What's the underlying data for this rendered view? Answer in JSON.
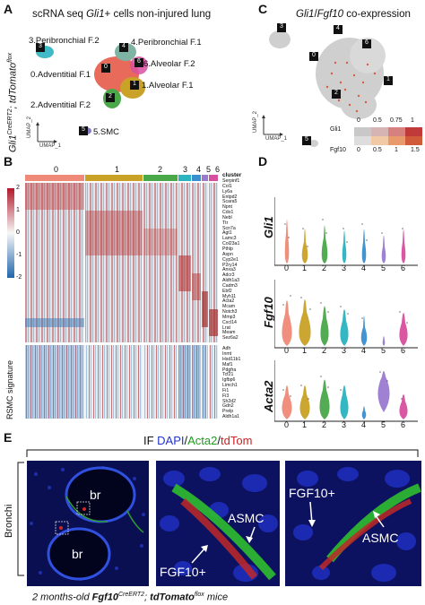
{
  "panels": {
    "a": {
      "label": "A",
      "title_pre": "scRNA seq ",
      "title_gene": "Gli1",
      "title_post": "+ cells non-injured lung",
      "side_label_pre": "Gli1",
      "side_label_mid": "CreERT2",
      "side_label_post": "; tdTomato",
      "side_label_sup": "flox",
      "axis_x": "UMAP_1",
      "axis_y": "UMAP_2",
      "clusters": [
        {
          "text": "3.Peribronchial F.2",
          "color": "#2bb3c0"
        },
        {
          "text": "4.Peribronchial F.1",
          "color": "#7fb3a3"
        },
        {
          "text": "0.Adventitial F.1",
          "color": "#e86a5a"
        },
        {
          "text": "6.Alveolar F.2",
          "color": "#d94fa0"
        },
        {
          "text": "1.Alveolar F.1",
          "color": "#c9a227"
        },
        {
          "text": "2.Adventitial F.2",
          "color": "#4aa84a"
        },
        {
          "text": "5.SMC",
          "color": "#8a7ac0"
        }
      ],
      "cluster_tags": [
        "3",
        "4",
        "0",
        "6",
        "1",
        "2",
        "5"
      ]
    },
    "c": {
      "label": "C",
      "title_gene1": "Gli1",
      "title_sep": "/",
      "title_gene2": "Fgf10",
      "title_post": " co-expression",
      "axis_x": "UMAP_1",
      "axis_y": "UMAP_2",
      "cluster_tags": [
        "3",
        "4",
        "0",
        "6",
        "1",
        "2",
        "5"
      ],
      "legend": {
        "row1_name": "Gli1",
        "row2_name": "Fgf10",
        "row1_ticks": [
          "0",
          "0.5",
          "0.75",
          "1"
        ],
        "row2_ticks": [
          "0",
          "0.5",
          "1",
          "1.5"
        ]
      }
    },
    "b": {
      "label": "B",
      "columns": [
        "0",
        "1",
        "2",
        "3",
        "4",
        "5",
        "6"
      ],
      "column_colors": [
        "#f08a78",
        "#c9a227",
        "#4aa84a",
        "#2bb3c0",
        "#3a8fd0",
        "#9a7ad0",
        "#d94fa0"
      ],
      "legend_title": "cluster",
      "scale": [
        "2",
        "1",
        "0",
        "-1",
        "-2"
      ],
      "side_label": "RSMC signature",
      "genes": [
        "Serpinf1",
        "Col1",
        "Ly6a",
        "Entpd2",
        "Scara5",
        "Npnt",
        "Cdo1",
        "Nebl",
        "Ttr",
        "Scn7a",
        "Agt1",
        "Lamc3",
        "Col23a1",
        "Pthlp",
        "Aspn",
        "Cyp2e1",
        "P2ry14",
        "Anxa3",
        "Adcr3",
        "Aldh1a3",
        "Cadm3",
        "Ebf2",
        "Myh11",
        "Acta2",
        "Mcam",
        "Notch3",
        "Mmp3",
        "Cxcl14",
        "Lrat",
        "Meam",
        "Sez6a2",
        "Adh",
        "Inmt",
        "Hsd11b1",
        "Maf1",
        "Pdgfra",
        "Tcf21",
        "Igfbp6",
        "Limch1",
        "Fi1",
        "Fi3",
        "Sh2d2",
        "Gdn2",
        "Prelp",
        "Aldh1a1"
      ]
    },
    "d": {
      "label": "D",
      "genes": [
        "Gli1",
        "Fgf10",
        "Acta2"
      ],
      "x_ticks": [
        "0",
        "1",
        "2",
        "3",
        "4",
        "5",
        "6"
      ]
    },
    "e": {
      "label": "E",
      "stain_prefix": "IF ",
      "stain_dapi": "DAPI",
      "stain_sep1": "/",
      "stain_acta2": "Acta2",
      "stain_sep2": "/",
      "stain_tdtom": "tdTom",
      "side_label": "Bronchi",
      "br_labels": [
        "br",
        "br"
      ],
      "img2_labels": [
        "ASMC",
        "FGF10+"
      ],
      "img3_labels": [
        "FGF10+",
        "ASMC"
      ],
      "caption_pre": "2 months-old ",
      "caption_gene": "Fgf10",
      "caption_sup1": "CreERT2",
      "caption_mid": "; ",
      "caption_gene2": "tdTomato",
      "caption_sup2": "flox",
      "caption_post": " mice"
    }
  }
}
